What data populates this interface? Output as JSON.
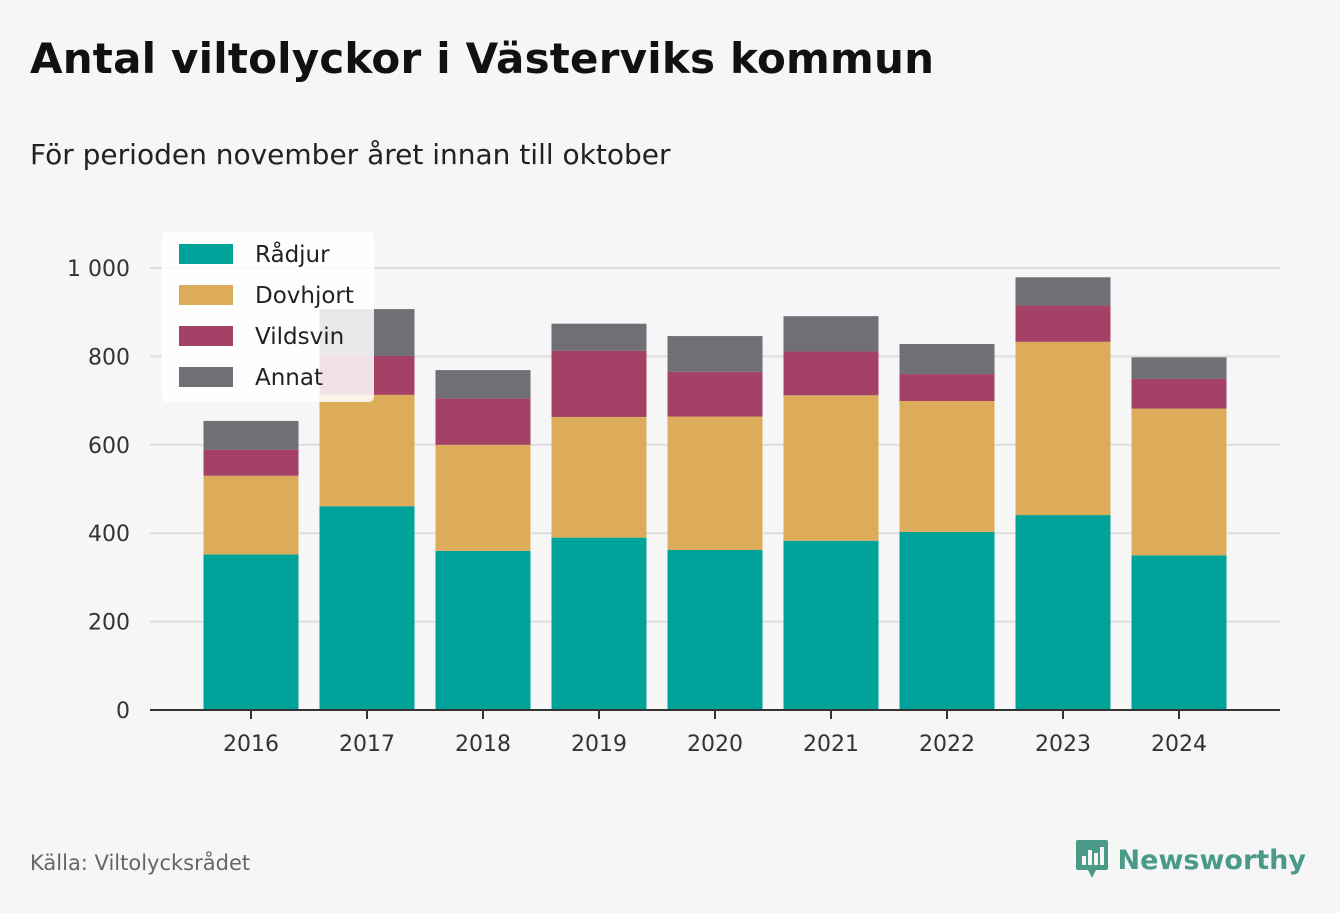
{
  "header": {
    "title": "Antal viltolyckor i Västerviks kommun",
    "subtitle": "För perioden november året innan till oktober"
  },
  "footer": {
    "source": "Källa: Viltolycksrådet",
    "brand": "Newsworthy"
  },
  "colors": {
    "background": "#f6f6f6",
    "grid": "#dddddd",
    "axis": "#333333",
    "brand": "#4a9a8a"
  },
  "chart_data": {
    "type": "bar",
    "stacked": true,
    "categories": [
      "2016",
      "2017",
      "2018",
      "2019",
      "2020",
      "2021",
      "2022",
      "2023",
      "2024"
    ],
    "series": [
      {
        "name": "Rådjur",
        "color": "#00a39a",
        "values": [
          352,
          461,
          360,
          390,
          362,
          383,
          403,
          441,
          350
        ]
      },
      {
        "name": "Dovhjort",
        "color": "#dcac5a",
        "values": [
          178,
          252,
          240,
          273,
          302,
          329,
          296,
          392,
          332
        ]
      },
      {
        "name": "Vildsvin",
        "color": "#a54066",
        "values": [
          59,
          88,
          105,
          150,
          101,
          99,
          61,
          82,
          67
        ]
      },
      {
        "name": "Annat",
        "color": "#706f76",
        "values": [
          65,
          106,
          64,
          61,
          81,
          80,
          68,
          64,
          49
        ]
      }
    ],
    "ylim": [
      0,
      1000
    ],
    "yticks": [
      0,
      200,
      400,
      600,
      800,
      1000
    ],
    "ytick_labels": [
      "0",
      "200",
      "400",
      "600",
      "800",
      "1 000"
    ],
    "grid": true,
    "legend_position": "top-left"
  }
}
